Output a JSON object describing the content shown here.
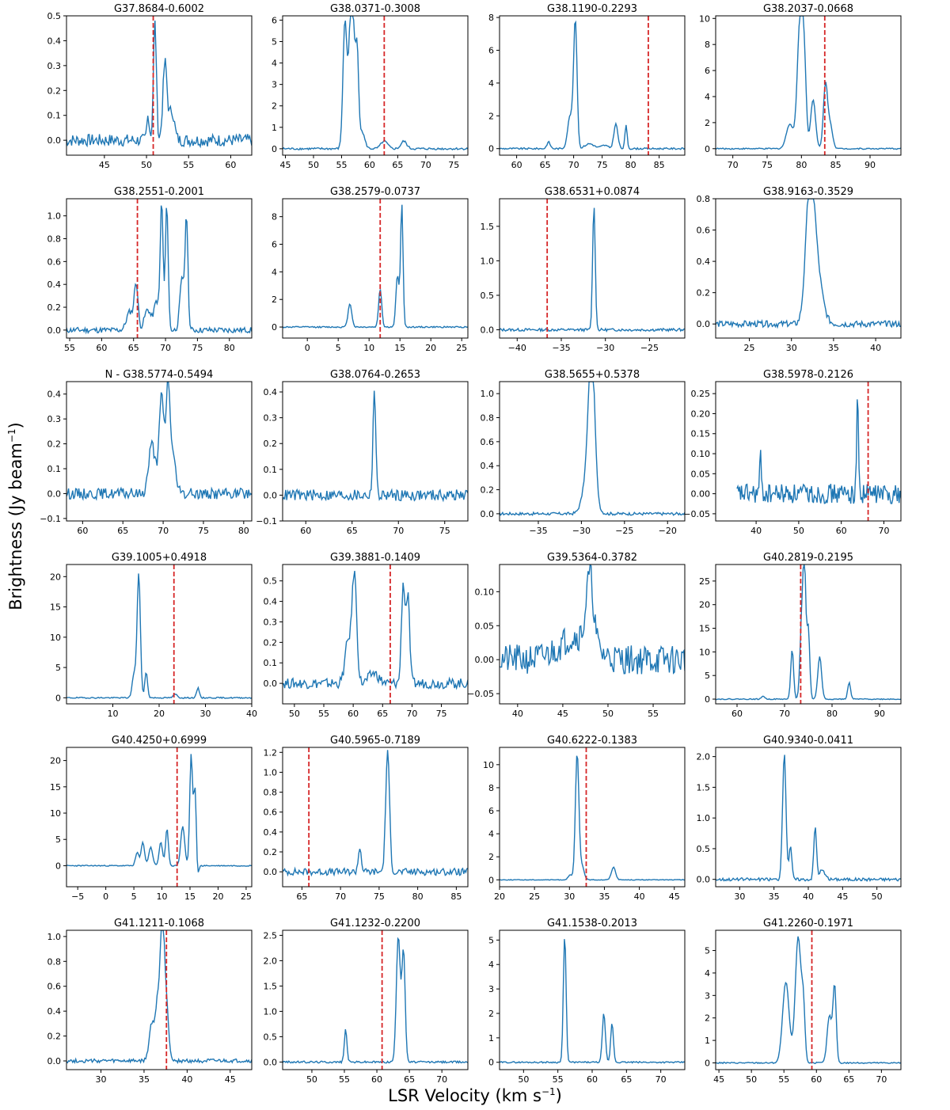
{
  "figure": {
    "xlabel": "LSR Velocity (km s",
    "xlabel_sup": "−1",
    "xlabel_tail": ")",
    "ylabel": "Brightness (Jy beam",
    "ylabel_sup": "−1",
    "ylabel_tail": ")",
    "colors": {
      "line": "#1f77b4",
      "marker": "#d62728",
      "axes": "#000000"
    }
  },
  "chart_data": [
    {
      "type": "line",
      "title": "G37.8684-0.6002",
      "xlim": [
        40.5,
        62.5
      ],
      "ylim": [
        -0.06,
        0.5
      ],
      "xticks": [
        45,
        50,
        55,
        60
      ],
      "yticks": [
        0.0,
        0.1,
        0.2,
        0.3,
        0.4,
        0.5
      ],
      "ytick_labels": [
        "0.0",
        "0.1",
        "0.2",
        "0.3",
        "0.4",
        "0.5"
      ],
      "vline": 50.8,
      "peaks": [
        [
          50.2,
          0.1,
          0.15
        ],
        [
          51.0,
          0.47,
          0.18
        ],
        [
          52.2,
          0.31,
          0.25
        ],
        [
          53.0,
          0.12,
          0.3
        ]
      ],
      "noise": 0.025
    },
    {
      "type": "line",
      "title": "G38.0371-0.3008",
      "xlim": [
        44.5,
        77.5
      ],
      "ylim": [
        -0.3,
        6.2
      ],
      "xticks": [
        45,
        50,
        55,
        60,
        65,
        70,
        75
      ],
      "yticks": [
        0,
        1,
        2,
        3,
        4,
        5,
        6
      ],
      "ytick_labels": [
        "0",
        "1",
        "2",
        "3",
        "4",
        "5",
        "6"
      ],
      "vline": 62.6,
      "peaks": [
        [
          55.6,
          5.9,
          0.35
        ],
        [
          56.6,
          3.0,
          0.35
        ],
        [
          57.0,
          5.2,
          0.5
        ],
        [
          57.8,
          3.3,
          0.25
        ],
        [
          58.6,
          0.8,
          0.5
        ],
        [
          62.6,
          0.35,
          0.6
        ],
        [
          66.1,
          0.35,
          0.5
        ]
      ],
      "noise": 0.05
    },
    {
      "type": "line",
      "title": "G38.1190-0.2293",
      "xlim": [
        57,
        89.5
      ],
      "ylim": [
        -0.4,
        8.1
      ],
      "xticks": [
        60,
        65,
        70,
        75,
        80,
        85
      ],
      "yticks": [
        0,
        2,
        4,
        6,
        8
      ],
      "ytick_labels": [
        "0",
        "2",
        "4",
        "6",
        "8"
      ],
      "vline": 83.1,
      "peaks": [
        [
          65.6,
          0.4,
          0.3
        ],
        [
          69.4,
          2.0,
          0.45
        ],
        [
          70.3,
          7.7,
          0.3
        ],
        [
          72.8,
          0.3,
          0.8
        ],
        [
          75.4,
          0.2,
          0.6
        ],
        [
          77.4,
          1.5,
          0.35
        ],
        [
          79.2,
          1.4,
          0.2
        ]
      ],
      "noise": 0.05
    },
    {
      "type": "line",
      "title": "G38.2037-0.0668",
      "xlim": [
        67.5,
        94.5
      ],
      "ylim": [
        -0.5,
        10.2
      ],
      "xticks": [
        70,
        75,
        80,
        85,
        90
      ],
      "yticks": [
        0,
        2,
        4,
        6,
        8,
        10
      ],
      "ytick_labels": [
        "0",
        "2",
        "4",
        "6",
        "8",
        "10"
      ],
      "vline": 83.4,
      "peaks": [
        [
          78.3,
          1.9,
          0.5
        ],
        [
          79.8,
          9.8,
          0.4
        ],
        [
          80.4,
          5.7,
          0.3
        ],
        [
          81.7,
          3.8,
          0.35
        ],
        [
          83.5,
          4.9,
          0.3
        ],
        [
          84.2,
          1.8,
          0.35
        ]
      ],
      "noise": 0.05
    },
    {
      "type": "line",
      "title": "G38.2551-0.2001",
      "xlim": [
        54.5,
        83.5
      ],
      "ylim": [
        -0.07,
        1.15
      ],
      "xticks": [
        55,
        60,
        65,
        70,
        75,
        80
      ],
      "yticks": [
        0.0,
        0.2,
        0.4,
        0.6,
        0.8,
        1.0
      ],
      "ytick_labels": [
        "0.0",
        "0.2",
        "0.4",
        "0.6",
        "0.8",
        "1.0"
      ],
      "vline": 65.6,
      "peaks": [
        [
          64.4,
          0.16,
          0.5
        ],
        [
          65.4,
          0.4,
          0.3
        ],
        [
          67.2,
          0.18,
          0.5
        ],
        [
          68.6,
          0.25,
          0.4
        ],
        [
          69.4,
          1.1,
          0.22
        ],
        [
          70.2,
          1.1,
          0.22
        ],
        [
          72.6,
          0.45,
          0.35
        ],
        [
          73.3,
          0.95,
          0.22
        ]
      ],
      "noise": 0.025
    },
    {
      "type": "line",
      "title": "G38.2579-0.0737",
      "xlim": [
        -4,
        26
      ],
      "ylim": [
        -0.8,
        9.3
      ],
      "xticks": [
        0,
        5,
        10,
        15,
        20,
        25
      ],
      "yticks": [
        0,
        2,
        4,
        6,
        8
      ],
      "ytick_labels": [
        "0",
        "2",
        "4",
        "6",
        "8"
      ],
      "vline": 11.8,
      "peaks": [
        [
          6.9,
          1.7,
          0.3
        ],
        [
          11.8,
          2.8,
          0.25
        ],
        [
          14.6,
          3.8,
          0.25
        ],
        [
          15.3,
          8.9,
          0.2
        ]
      ],
      "noise": 0.05
    },
    {
      "type": "line",
      "title": "G38.6531+0.0874",
      "xlim": [
        -42,
        -21
      ],
      "ylim": [
        -0.12,
        1.9
      ],
      "xticks": [
        -40,
        -35,
        -30,
        -25
      ],
      "yticks": [
        0.0,
        0.5,
        1.0,
        1.5
      ],
      "ytick_labels": [
        "0.0",
        "0.5",
        "1.0",
        "1.5"
      ],
      "vline": -36.6,
      "peaks": [
        [
          -31.3,
          1.8,
          0.15
        ]
      ],
      "noise": 0.02
    },
    {
      "type": "line",
      "title": "G38.9163-0.3529",
      "xlim": [
        21,
        43
      ],
      "ylim": [
        -0.09,
        0.8
      ],
      "xticks": [
        25,
        30,
        35,
        40
      ],
      "yticks": [
        0.0,
        0.2,
        0.4,
        0.6,
        0.8
      ],
      "ytick_labels": [
        "0.0",
        "0.2",
        "0.4",
        "0.6",
        "0.8"
      ],
      "vline": null,
      "peaks": [
        [
          32.2,
          0.76,
          0.5
        ],
        [
          32.9,
          0.35,
          0.7
        ]
      ],
      "noise": 0.02
    },
    {
      "type": "line",
      "title": "N - G38.5774-0.5494",
      "xlim": [
        58,
        81
      ],
      "ylim": [
        -0.11,
        0.45
      ],
      "xticks": [
        60,
        65,
        70,
        75,
        80
      ],
      "yticks": [
        -0.1,
        0.0,
        0.1,
        0.2,
        0.3,
        0.4
      ],
      "ytick_labels": [
        "−0.1",
        "0.0",
        "0.1",
        "0.2",
        "0.3",
        "0.4"
      ],
      "vline": null,
      "peaks": [
        [
          68.6,
          0.2,
          0.4
        ],
        [
          69.8,
          0.39,
          0.3
        ],
        [
          70.6,
          0.42,
          0.25
        ],
        [
          71.2,
          0.15,
          0.35
        ]
      ],
      "noise": 0.022
    },
    {
      "type": "line",
      "title": "G38.0764-0.2653",
      "xlim": [
        57.5,
        77.5
      ],
      "ylim": [
        -0.1,
        0.44
      ],
      "xticks": [
        60,
        65,
        70,
        75
      ],
      "yticks": [
        -0.1,
        0.0,
        0.1,
        0.2,
        0.3,
        0.4
      ],
      "ytick_labels": [
        "−0.1",
        "0.0",
        "0.1",
        "0.2",
        "0.3",
        "0.4"
      ],
      "vline": null,
      "peaks": [
        [
          67.4,
          0.41,
          0.15
        ]
      ],
      "noise": 0.022
    },
    {
      "type": "line",
      "title": "G38.5655+0.5378",
      "xlim": [
        -39.5,
        -18
      ],
      "ylim": [
        -0.06,
        1.1
      ],
      "xticks": [
        -35,
        -30,
        -25,
        -20
      ],
      "yticks": [
        0.0,
        0.2,
        0.4,
        0.6,
        0.8,
        1.0
      ],
      "ytick_labels": [
        "0.0",
        "0.2",
        "0.4",
        "0.6",
        "0.8",
        "1.0"
      ],
      "vline": null,
      "peaks": [
        [
          -29.1,
          0.4,
          0.6
        ],
        [
          -28.8,
          1.05,
          0.35
        ]
      ],
      "noise": 0.012
    },
    {
      "type": "line",
      "title": "G38.5978-0.2126",
      "xlim": [
        30.5,
        74
      ],
      "ylim": [
        -0.068,
        0.28
      ],
      "xticks": [
        40,
        50,
        60,
        70
      ],
      "yticks": [
        -0.05,
        0.0,
        0.05,
        0.1,
        0.15,
        0.2,
        0.25
      ],
      "ytick_labels": [
        "−0.05",
        "0.00",
        "0.05",
        "0.10",
        "0.15",
        "0.20",
        "0.25"
      ],
      "vline": 66.3,
      "peaks": [
        [
          41.0,
          0.09,
          0.2
        ],
        [
          63.8,
          0.26,
          0.2
        ]
      ],
      "noise": 0.025,
      "xstart": 35.5
    },
    {
      "type": "line",
      "title": "G39.1005+0.4918",
      "xlim": [
        0,
        40
      ],
      "ylim": [
        -1,
        22
      ],
      "xticks": [
        10,
        20,
        30,
        40
      ],
      "yticks": [
        0,
        5,
        10,
        15,
        20
      ],
      "ytick_labels": [
        "0",
        "5",
        "10",
        "15",
        "20"
      ],
      "vline": 23.2,
      "peaks": [
        [
          14.6,
          4.0,
          0.4
        ],
        [
          15.6,
          20.5,
          0.35
        ],
        [
          17.2,
          4.2,
          0.3
        ],
        [
          23.5,
          0.6,
          0.4
        ],
        [
          28.4,
          1.6,
          0.3
        ]
      ],
      "noise": 0.1
    },
    {
      "type": "line",
      "title": "G39.3881-0.1409",
      "xlim": [
        48,
        79.5
      ],
      "ylim": [
        -0.1,
        0.58
      ],
      "xticks": [
        50,
        55,
        60,
        65,
        70,
        75
      ],
      "yticks": [
        0.0,
        0.1,
        0.2,
        0.3,
        0.4,
        0.5
      ],
      "ytick_labels": [
        "0.0",
        "0.1",
        "0.2",
        "0.3",
        "0.4",
        "0.5"
      ],
      "vline": 66.3,
      "peaks": [
        [
          59.1,
          0.2,
          0.5
        ],
        [
          60.2,
          0.53,
          0.4
        ],
        [
          63.5,
          0.05,
          0.8
        ],
        [
          68.5,
          0.48,
          0.3
        ],
        [
          69.3,
          0.42,
          0.3
        ]
      ],
      "noise": 0.025
    },
    {
      "type": "line",
      "title": "G39.5364-0.3782",
      "xlim": [
        38,
        58.5
      ],
      "ylim": [
        -0.065,
        0.14
      ],
      "xticks": [
        40,
        45,
        50,
        55
      ],
      "yticks": [
        -0.05,
        0.0,
        0.05,
        0.1
      ],
      "ytick_labels": [
        "−0.05",
        "0.00",
        "0.05",
        "0.10"
      ],
      "vline": null,
      "peaks": [
        [
          48.0,
          0.1,
          0.4
        ],
        [
          46.5,
          0.035,
          1.8
        ]
      ],
      "noise": 0.022
    },
    {
      "type": "line",
      "title": "G40.2819-0.2195",
      "xlim": [
        55.5,
        94.5
      ],
      "ylim": [
        -1,
        28.5
      ],
      "xticks": [
        60,
        70,
        80,
        90
      ],
      "yticks": [
        0,
        5,
        10,
        15,
        20,
        25
      ],
      "ytick_labels": [
        "0",
        "5",
        "10",
        "15",
        "20",
        "25"
      ],
      "vline": 73.4,
      "peaks": [
        [
          71.6,
          10.5,
          0.3
        ],
        [
          73.6,
          16,
          0.35
        ],
        [
          74.2,
          26.5,
          0.3
        ],
        [
          75.0,
          15,
          0.3
        ],
        [
          77.4,
          9,
          0.4
        ],
        [
          83.6,
          3.5,
          0.3
        ],
        [
          65.5,
          0.7,
          0.3
        ]
      ],
      "noise": 0.1
    },
    {
      "type": "line",
      "title": "G40.4250+0.6999",
      "xlim": [
        -7,
        26
      ],
      "ylim": [
        -4,
        22.5
      ],
      "xticks": [
        -5,
        0,
        5,
        10,
        15,
        20,
        25
      ],
      "yticks": [
        0,
        5,
        10,
        15,
        20
      ],
      "ytick_labels": [
        "0",
        "5",
        "10",
        "15",
        "20"
      ],
      "vline": 12.7,
      "peaks": [
        [
          5.6,
          2.5,
          0.3
        ],
        [
          6.6,
          4.5,
          0.3
        ],
        [
          8.0,
          3.5,
          0.35
        ],
        [
          9.8,
          4.5,
          0.3
        ],
        [
          10.9,
          7.0,
          0.25
        ],
        [
          13.7,
          7.5,
          0.35
        ],
        [
          15.2,
          21,
          0.25
        ],
        [
          15.9,
          15,
          0.25
        ],
        [
          16.3,
          -3.5,
          0.2
        ]
      ],
      "noise": 0.1
    },
    {
      "type": "line",
      "title": "G40.5965-0.7189",
      "xlim": [
        62.5,
        86.5
      ],
      "ylim": [
        -0.15,
        1.25
      ],
      "xticks": [
        65,
        70,
        75,
        80,
        85
      ],
      "yticks": [
        0.0,
        0.2,
        0.4,
        0.6,
        0.8,
        1.0,
        1.2
      ],
      "ytick_labels": [
        "0.0",
        "0.2",
        "0.4",
        "0.6",
        "0.8",
        "1.0",
        "1.2"
      ],
      "vline": 65.9,
      "peaks": [
        [
          72.5,
          0.24,
          0.2
        ],
        [
          76.1,
          1.2,
          0.25
        ]
      ],
      "noise": 0.035
    },
    {
      "type": "line",
      "title": "G40.6222-0.1383",
      "xlim": [
        20,
        46.5
      ],
      "ylim": [
        -0.6,
        11.5
      ],
      "xticks": [
        20,
        25,
        30,
        35,
        40,
        45
      ],
      "yticks": [
        0,
        2,
        4,
        6,
        8,
        10
      ],
      "ytick_labels": [
        "0",
        "2",
        "4",
        "6",
        "8",
        "10"
      ],
      "vline": 32.4,
      "peaks": [
        [
          30.1,
          0.4,
          0.3
        ],
        [
          31.1,
          11,
          0.25
        ],
        [
          31.8,
          1.2,
          0.3
        ],
        [
          36.3,
          1.1,
          0.3
        ]
      ],
      "noise": 0.03
    },
    {
      "type": "line",
      "title": "G40.9340-0.0411",
      "xlim": [
        26.5,
        53.5
      ],
      "ylim": [
        -0.12,
        2.15
      ],
      "xticks": [
        30,
        35,
        40,
        45,
        50
      ],
      "yticks": [
        0.0,
        0.5,
        1.0,
        1.5,
        2.0
      ],
      "ytick_labels": [
        "0.0",
        "0.5",
        "1.0",
        "1.5",
        "2.0"
      ],
      "vline": null,
      "peaks": [
        [
          36.5,
          2.05,
          0.25
        ],
        [
          37.4,
          0.55,
          0.2
        ],
        [
          41.0,
          0.85,
          0.2
        ],
        [
          42.0,
          0.15,
          0.4
        ]
      ],
      "noise": 0.025
    },
    {
      "type": "line",
      "title": "G41.1211-0.1068",
      "xlim": [
        26,
        47.5
      ],
      "ylim": [
        -0.07,
        1.05
      ],
      "xticks": [
        30,
        35,
        40,
        45
      ],
      "yticks": [
        0.0,
        0.2,
        0.4,
        0.6,
        0.8,
        1.0
      ],
      "ytick_labels": [
        "0.0",
        "0.2",
        "0.4",
        "0.6",
        "0.8",
        "1.0"
      ],
      "vline": 37.6,
      "peaks": [
        [
          35.9,
          0.3,
          0.3
        ],
        [
          36.6,
          0.5,
          0.25
        ],
        [
          37.1,
          1.03,
          0.2
        ],
        [
          37.5,
          0.55,
          0.3
        ]
      ],
      "noise": 0.015
    },
    {
      "type": "line",
      "title": "G41.1232-0.2200",
      "xlim": [
        45.5,
        74
      ],
      "ylim": [
        -0.15,
        2.6
      ],
      "xticks": [
        50,
        55,
        60,
        65,
        70
      ],
      "yticks": [
        0.0,
        0.5,
        1.0,
        1.5,
        2.0,
        2.5
      ],
      "ytick_labels": [
        "0.0",
        "0.5",
        "1.0",
        "1.5",
        "2.0",
        "2.5"
      ],
      "vline": 60.8,
      "peaks": [
        [
          55.2,
          0.65,
          0.2
        ],
        [
          63.3,
          2.5,
          0.3
        ],
        [
          64.1,
          2.2,
          0.25
        ]
      ],
      "noise": 0.02
    },
    {
      "type": "line",
      "title": "G41.1538-0.2013",
      "xlim": [
        46.5,
        73.5
      ],
      "ylim": [
        -0.3,
        5.4
      ],
      "xticks": [
        50,
        55,
        60,
        65,
        70
      ],
      "yticks": [
        0,
        1,
        2,
        3,
        4,
        5
      ],
      "ytick_labels": [
        "0",
        "1",
        "2",
        "3",
        "4",
        "5"
      ],
      "vline": null,
      "peaks": [
        [
          56.0,
          5.2,
          0.2
        ],
        [
          61.7,
          2.0,
          0.22
        ],
        [
          62.9,
          1.6,
          0.2
        ]
      ],
      "noise": 0.03
    },
    {
      "type": "line",
      "title": "G41.2260-0.1971",
      "xlim": [
        44.5,
        73
      ],
      "ylim": [
        -0.3,
        5.9
      ],
      "xticks": [
        45,
        50,
        55,
        60,
        65,
        70
      ],
      "yticks": [
        0,
        1,
        2,
        3,
        4,
        5
      ],
      "ytick_labels": [
        "0",
        "1",
        "2",
        "3",
        "4",
        "5"
      ],
      "vline": 59.3,
      "peaks": [
        [
          55.3,
          3.6,
          0.5
        ],
        [
          57.2,
          5.6,
          0.45
        ],
        [
          58.0,
          2.1,
          0.25
        ],
        [
          62.0,
          2.1,
          0.35
        ],
        [
          62.8,
          3.4,
          0.25
        ]
      ],
      "noise": 0.03
    }
  ]
}
